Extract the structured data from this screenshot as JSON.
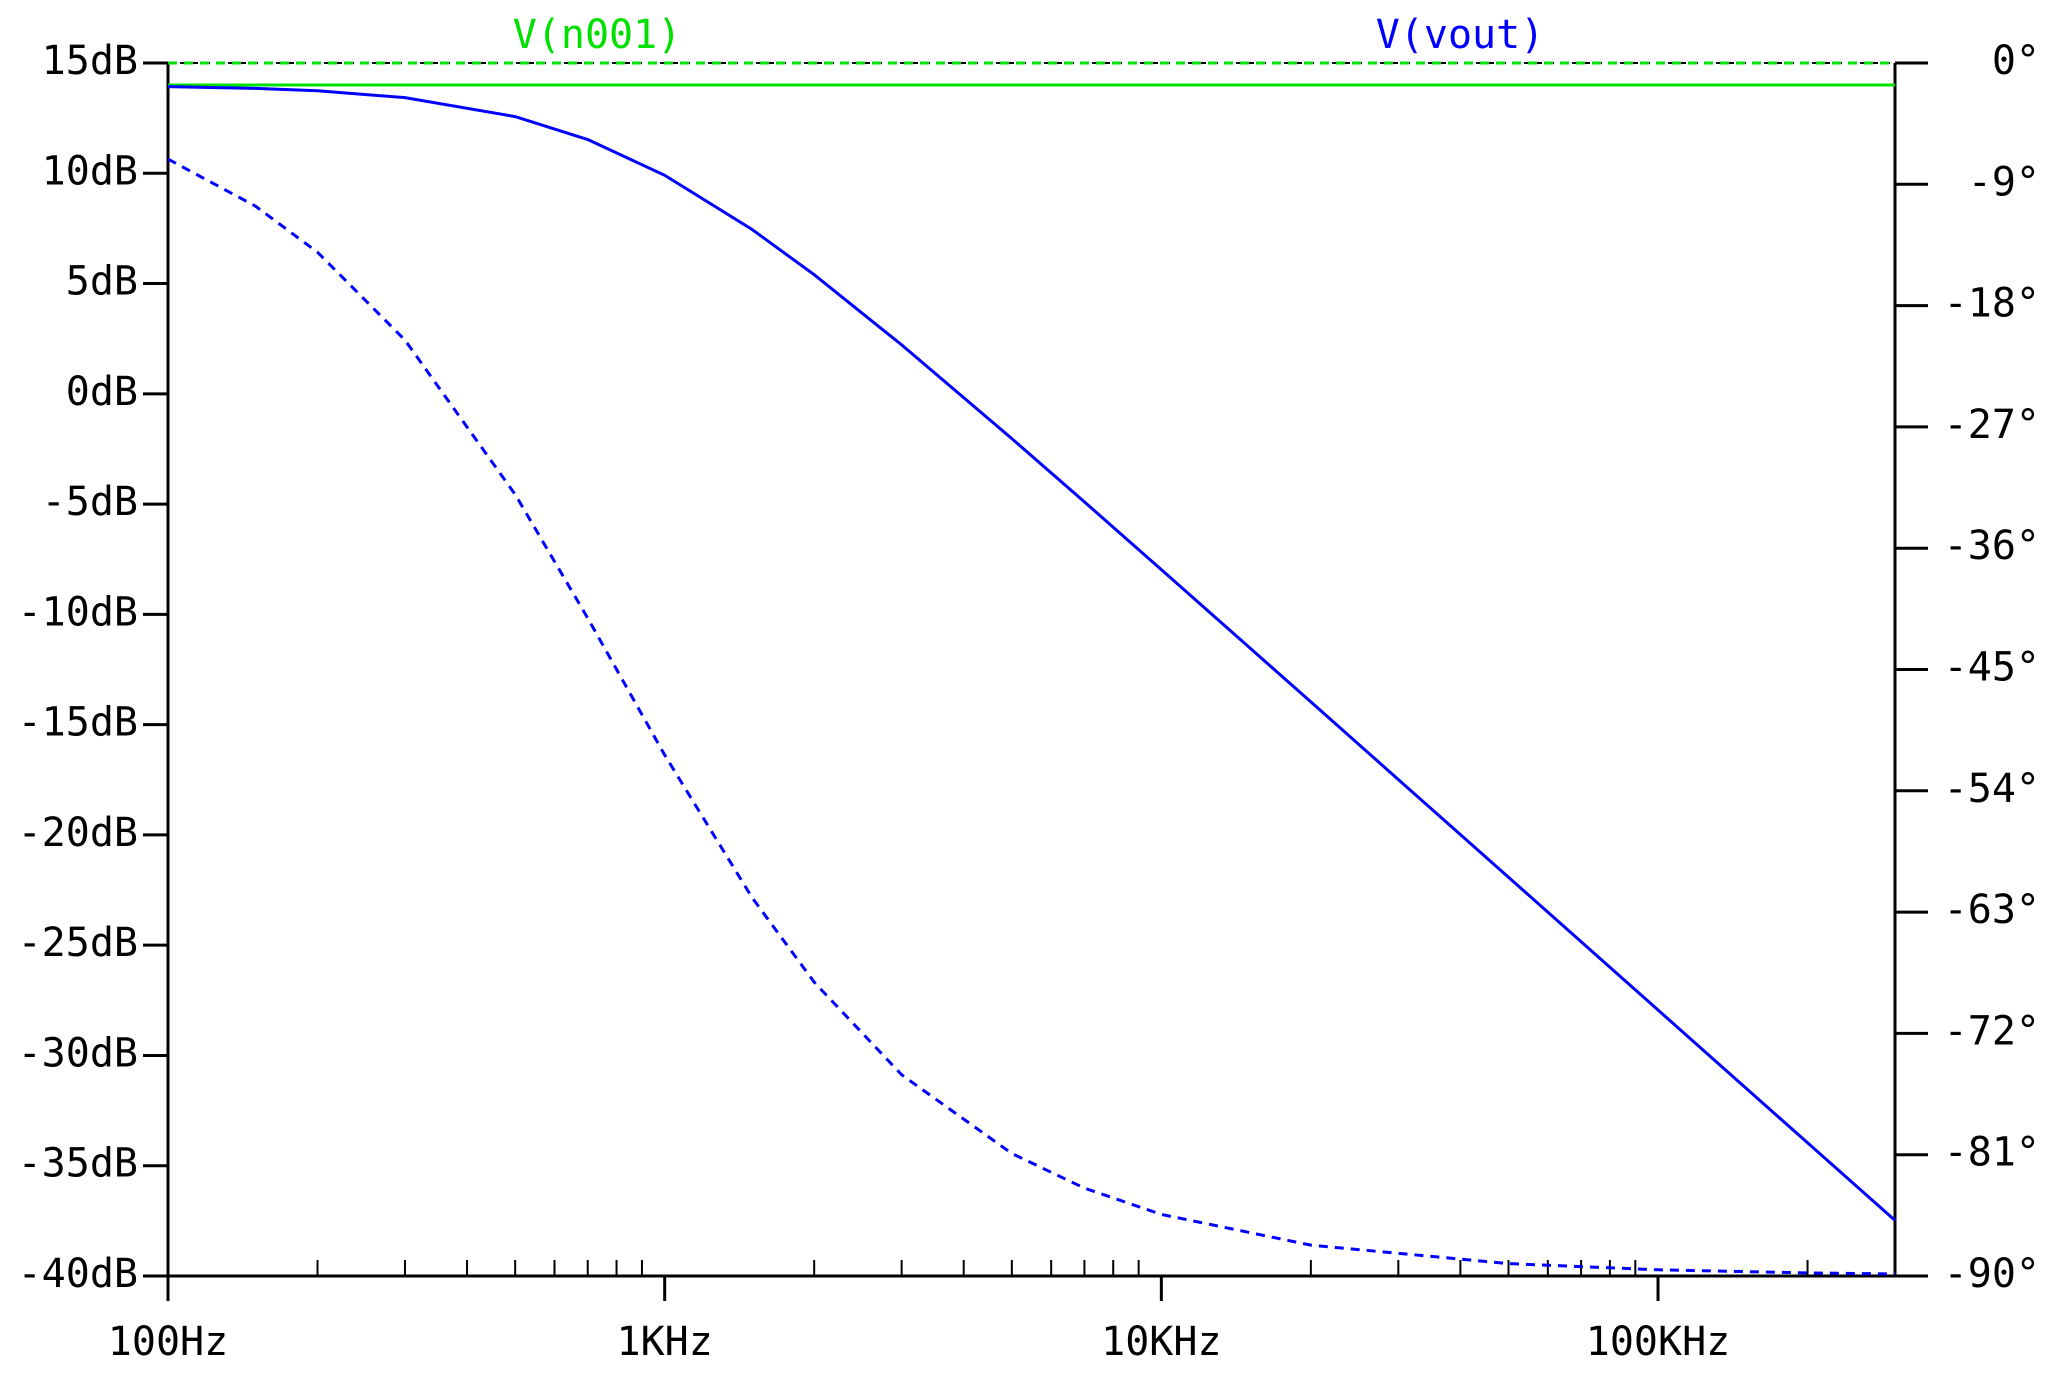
{
  "chart_data": {
    "type": "line",
    "x": [
      100,
      150,
      200,
      300,
      500,
      700,
      1000,
      1500,
      2000,
      3000,
      5000,
      7000,
      10000,
      20000,
      50000,
      100000,
      200000,
      300000
    ],
    "xlim": [
      100,
      300000
    ],
    "xlog": true,
    "xticks": [
      {
        "value": 100,
        "label": "100Hz"
      },
      {
        "value": 1000,
        "label": "1KHz"
      },
      {
        "value": 10000,
        "label": "10KHz"
      },
      {
        "value": 100000,
        "label": "100KHz"
      }
    ],
    "xminorticks": [
      200,
      300,
      400,
      500,
      600,
      700,
      800,
      900,
      2000,
      3000,
      4000,
      5000,
      6000,
      7000,
      8000,
      9000,
      20000,
      30000,
      40000,
      50000,
      60000,
      70000,
      80000,
      90000,
      200000
    ],
    "ylim": [
      -40,
      15
    ],
    "yticks": [
      {
        "value": 15,
        "label": "15dB"
      },
      {
        "value": 10,
        "label": "10dB"
      },
      {
        "value": 5,
        "label": "5dB"
      },
      {
        "value": 0,
        "label": "0dB"
      },
      {
        "value": -5,
        "label": "-5dB"
      },
      {
        "value": -10,
        "label": "-10dB"
      },
      {
        "value": -15,
        "label": "-15dB"
      },
      {
        "value": -20,
        "label": "-20dB"
      },
      {
        "value": -25,
        "label": "-25dB"
      },
      {
        "value": -30,
        "label": "-30dB"
      },
      {
        "value": -35,
        "label": "-35dB"
      },
      {
        "value": -40,
        "label": "-40dB"
      }
    ],
    "y2lim": [
      -90,
      0
    ],
    "y2ticks": [
      {
        "value": 0,
        "label": "0°"
      },
      {
        "value": -9,
        "label": "-9°"
      },
      {
        "value": -18,
        "label": "-18°"
      },
      {
        "value": -27,
        "label": "-27°"
      },
      {
        "value": -36,
        "label": "-36°"
      },
      {
        "value": -45,
        "label": "-45°"
      },
      {
        "value": -54,
        "label": "-54°"
      },
      {
        "value": -63,
        "label": "-63°"
      },
      {
        "value": -72,
        "label": "-72°"
      },
      {
        "value": -81,
        "label": "-81°"
      },
      {
        "value": -90,
        "label": "-90°"
      }
    ],
    "series": [
      {
        "name": "V(n001)",
        "color": "#00e000",
        "values": [
          14,
          14,
          14,
          14,
          14,
          14,
          14,
          14,
          14,
          14,
          14,
          14,
          14,
          14,
          14,
          14,
          14,
          14
        ]
      },
      {
        "name": "V(vout)",
        "color": "#0000ff",
        "values": [
          13.93,
          13.85,
          13.74,
          13.43,
          12.57,
          11.53,
          9.91,
          7.45,
          5.4,
          2.22,
          -2.03,
          -4.9,
          -7.97,
          -13.97,
          -21.92,
          -27.94,
          -33.96,
          -37.48
        ]
      },
      {
        "color": "#00e000",
        "axis": "y2",
        "dashed": true,
        "values": [
          0,
          0,
          0,
          0,
          0,
          0,
          0,
          0,
          0,
          0,
          0,
          0,
          0,
          0,
          0,
          0,
          0,
          0
        ]
      },
      {
        "color": "#0000ff",
        "axis": "y2",
        "dashed": true,
        "values": [
          -7.13,
          -10.62,
          -14.04,
          -20.56,
          -32.01,
          -41.19,
          -51.34,
          -61.93,
          -68.2,
          -75.07,
          -80.91,
          -83.48,
          -85.43,
          -87.71,
          -89.08,
          -89.54,
          -89.77,
          -89.85
        ]
      }
    ]
  }
}
